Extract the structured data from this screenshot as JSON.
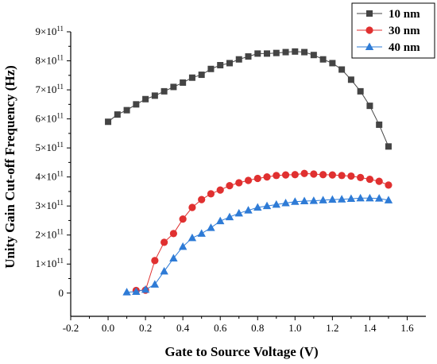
{
  "chart_data": {
    "type": "line",
    "title": "",
    "xlabel": "Gate to Source Voltage (V)",
    "ylabel": "Unity Gain Cut-off Frequency (Hz)",
    "xlim": [
      -0.2,
      1.7
    ],
    "ylim": [
      -80000000000.0,
      900000000000.0
    ],
    "x_ticks": [
      -0.2,
      0.0,
      0.2,
      0.4,
      0.6,
      0.8,
      1.0,
      1.2,
      1.4,
      1.6
    ],
    "x_tick_labels": [
      "-0.2",
      "0.0",
      "0.2",
      "0.4",
      "0.6",
      "0.8",
      "1.0",
      "1.2",
      "1.4",
      "1.6"
    ],
    "y_ticks": [
      {
        "value": 0,
        "mantissa": "0",
        "exp": ""
      },
      {
        "value": 100000000000.0,
        "mantissa": "1×10",
        "exp": "11"
      },
      {
        "value": 200000000000.0,
        "mantissa": "2×10",
        "exp": "11"
      },
      {
        "value": 300000000000.0,
        "mantissa": "3×10",
        "exp": "11"
      },
      {
        "value": 400000000000.0,
        "mantissa": "4×10",
        "exp": "11"
      },
      {
        "value": 500000000000.0,
        "mantissa": "5×10",
        "exp": "11"
      },
      {
        "value": 600000000000.0,
        "mantissa": "6×10",
        "exp": "11"
      },
      {
        "value": 700000000000.0,
        "mantissa": "7×10",
        "exp": "11"
      },
      {
        "value": 800000000000.0,
        "mantissa": "8×10",
        "exp": "11"
      },
      {
        "value": 900000000000.0,
        "mantissa": "9×10",
        "exp": "11"
      }
    ],
    "legend_position": "top-right",
    "series": [
      {
        "name": "10 nm",
        "color": "#444444",
        "marker": "square",
        "x": [
          0.0,
          0.05,
          0.1,
          0.15,
          0.2,
          0.25,
          0.3,
          0.35,
          0.4,
          0.45,
          0.5,
          0.55,
          0.6,
          0.65,
          0.7,
          0.75,
          0.8,
          0.85,
          0.9,
          0.95,
          1.0,
          1.05,
          1.1,
          1.15,
          1.2,
          1.25,
          1.3,
          1.35,
          1.4,
          1.45,
          1.5
        ],
        "y": [
          590000000000.0,
          615000000000.0,
          630000000000.0,
          650000000000.0,
          668000000000.0,
          680000000000.0,
          695000000000.0,
          710000000000.0,
          725000000000.0,
          742000000000.0,
          752000000000.0,
          772000000000.0,
          785000000000.0,
          792000000000.0,
          805000000000.0,
          815000000000.0,
          825000000000.0,
          825000000000.0,
          827000000000.0,
          830000000000.0,
          832000000000.0,
          830000000000.0,
          820000000000.0,
          805000000000.0,
          792000000000.0,
          770000000000.0,
          735000000000.0,
          695000000000.0,
          645000000000.0,
          580000000000.0,
          505000000000.0
        ]
      },
      {
        "name": "30 nm",
        "color": "#e03030",
        "marker": "circle",
        "x": [
          0.15,
          0.2,
          0.25,
          0.3,
          0.35,
          0.4,
          0.45,
          0.5,
          0.55,
          0.6,
          0.65,
          0.7,
          0.75,
          0.8,
          0.85,
          0.9,
          0.95,
          1.0,
          1.05,
          1.1,
          1.15,
          1.2,
          1.25,
          1.3,
          1.35,
          1.4,
          1.45,
          1.5
        ],
        "y": [
          9000000000.0,
          10000000000.0,
          112000000000.0,
          175000000000.0,
          205000000000.0,
          255000000000.0,
          295000000000.0,
          322000000000.0,
          342000000000.0,
          355000000000.0,
          370000000000.0,
          380000000000.0,
          388000000000.0,
          395000000000.0,
          400000000000.0,
          405000000000.0,
          407000000000.0,
          408000000000.0,
          412000000000.0,
          410000000000.0,
          408000000000.0,
          407000000000.0,
          405000000000.0,
          403000000000.0,
          398000000000.0,
          392000000000.0,
          385000000000.0,
          372000000000.0
        ]
      },
      {
        "name": "40 nm",
        "color": "#2e7bd6",
        "marker": "triangle",
        "x": [
          0.1,
          0.15,
          0.2,
          0.25,
          0.3,
          0.35,
          0.4,
          0.45,
          0.5,
          0.55,
          0.6,
          0.65,
          0.7,
          0.75,
          0.8,
          0.85,
          0.9,
          0.95,
          1.0,
          1.05,
          1.1,
          1.15,
          1.2,
          1.25,
          1.3,
          1.35,
          1.4,
          1.45,
          1.5
        ],
        "y": [
          3000000000.0,
          5000000000.0,
          12000000000.0,
          30000000000.0,
          75000000000.0,
          120000000000.0,
          160000000000.0,
          190000000000.0,
          205000000000.0,
          225000000000.0,
          248000000000.0,
          262000000000.0,
          275000000000.0,
          285000000000.0,
          295000000000.0,
          300000000000.0,
          305000000000.0,
          310000000000.0,
          315000000000.0,
          317000000000.0,
          318000000000.0,
          320000000000.0,
          322000000000.0,
          323000000000.0,
          325000000000.0,
          327000000000.0,
          327000000000.0,
          326000000000.0,
          320000000000.0
        ]
      }
    ]
  }
}
